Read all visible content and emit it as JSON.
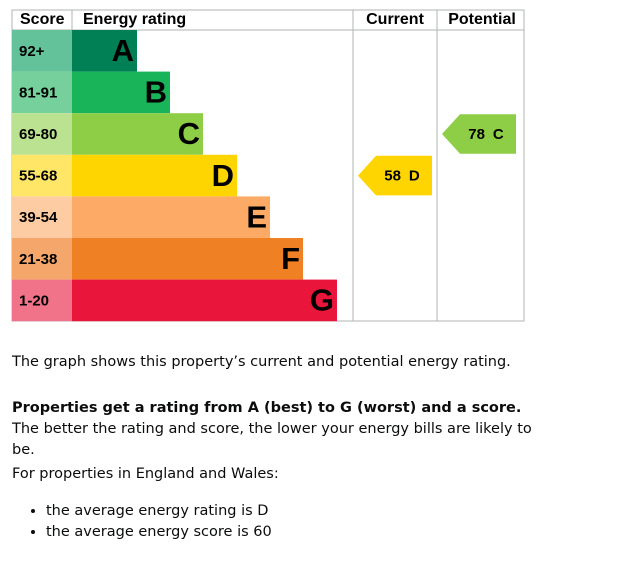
{
  "epc": {
    "headers": {
      "score": "Score",
      "rating": "Energy rating",
      "current": "Current",
      "potential": "Potential"
    },
    "bands": [
      {
        "score": "92+",
        "letter": "A",
        "color": "#008054",
        "score_color": "#64c29a"
      },
      {
        "score": "81-91",
        "letter": "B",
        "color": "#19b459",
        "score_color": "#75d09b"
      },
      {
        "score": "69-80",
        "letter": "C",
        "color": "#8dce46",
        "score_color": "#bbe290"
      },
      {
        "score": "55-68",
        "letter": "D",
        "color": "#ffd500",
        "score_color": "#ffe666"
      },
      {
        "score": "39-54",
        "letter": "E",
        "color": "#fcaa65",
        "score_color": "#fdcca3"
      },
      {
        "score": "21-38",
        "letter": "F",
        "color": "#ef8023",
        "score_color": "#f5a66a"
      },
      {
        "score": "1-20",
        "letter": "G",
        "color": "#e9153b",
        "score_color": "#f17389"
      }
    ],
    "current": {
      "score": 58,
      "rating": "D",
      "band": 3
    },
    "potential": {
      "score": 78,
      "rating": "C",
      "band": 2
    }
  },
  "text": {
    "p1": "The graph shows this property’s current and potential energy rating.",
    "p2_bold": "Properties get a rating from A (best) to G (worst) and a score.",
    "p2_rest": " The better the rating and score, the lower your energy bills are likely to be.",
    "p3": "For properties in England and Wales:",
    "bullets": [
      "the average energy rating is D",
      "the average energy score is 60"
    ]
  }
}
